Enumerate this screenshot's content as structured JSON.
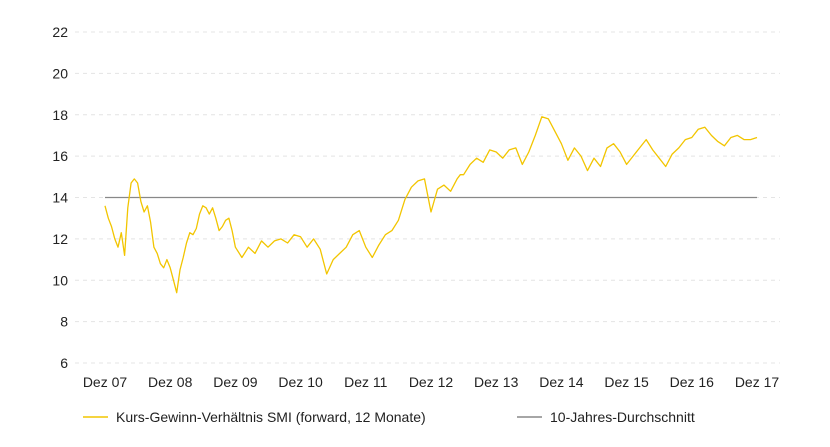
{
  "chart_data": {
    "type": "line",
    "title": "",
    "xlabel": "",
    "ylabel": "",
    "ylim": [
      6,
      22
    ],
    "yticks": [
      6,
      8,
      10,
      12,
      14,
      16,
      18,
      20,
      22
    ],
    "x_categories": [
      "Dez 07",
      "Dez 08",
      "Dez 09",
      "Dez 10",
      "Dez 11",
      "Dez 12",
      "Dez 13",
      "Dez 14",
      "Dez 15",
      "Dez 16",
      "Dez 17"
    ],
    "grid": {
      "horizontal": true,
      "vertical": false,
      "style": "dashed"
    },
    "legend_position": "bottom",
    "series": [
      {
        "name": "Kurs-Gewinn-Verhältnis SMI (forward, 12 Monate)",
        "color": "#F2C500",
        "x": [
          0,
          0.05,
          0.1,
          0.15,
          0.2,
          0.25,
          0.3,
          0.35,
          0.4,
          0.45,
          0.5,
          0.55,
          0.6,
          0.65,
          0.7,
          0.75,
          0.8,
          0.85,
          0.9,
          0.95,
          1.0,
          1.05,
          1.1,
          1.15,
          1.2,
          1.25,
          1.3,
          1.35,
          1.4,
          1.45,
          1.5,
          1.55,
          1.6,
          1.65,
          1.7,
          1.75,
          1.8,
          1.85,
          1.9,
          1.95,
          2.0,
          2.1,
          2.2,
          2.3,
          2.4,
          2.5,
          2.6,
          2.7,
          2.8,
          2.9,
          3.0,
          3.1,
          3.2,
          3.3,
          3.4,
          3.5,
          3.6,
          3.7,
          3.8,
          3.9,
          4.0,
          4.1,
          4.2,
          4.3,
          4.4,
          4.5,
          4.6,
          4.7,
          4.8,
          4.9,
          5.0,
          5.1,
          5.2,
          5.3,
          5.4,
          5.45,
          5.5,
          5.6,
          5.7,
          5.8,
          5.9,
          6.0,
          6.1,
          6.2,
          6.3,
          6.4,
          6.5,
          6.6,
          6.7,
          6.8,
          6.9,
          7.0,
          7.1,
          7.2,
          7.3,
          7.4,
          7.5,
          7.6,
          7.7,
          7.8,
          7.9,
          8.0,
          8.1,
          8.2,
          8.3,
          8.4,
          8.5,
          8.6,
          8.7,
          8.8,
          8.9,
          9.0,
          9.1,
          9.2,
          9.3,
          9.4,
          9.5,
          9.6,
          9.7,
          9.8,
          9.9,
          10.0
        ],
        "y": [
          13.6,
          13.0,
          12.6,
          12.0,
          11.6,
          12.3,
          11.2,
          13.5,
          14.7,
          14.9,
          14.7,
          13.8,
          13.3,
          13.6,
          12.8,
          11.6,
          11.3,
          10.8,
          10.6,
          11.0,
          10.6,
          10.0,
          9.4,
          10.5,
          11.1,
          11.8,
          12.3,
          12.2,
          12.5,
          13.2,
          13.6,
          13.5,
          13.2,
          13.5,
          13.0,
          12.4,
          12.6,
          12.9,
          13.0,
          12.4,
          11.6,
          11.1,
          11.6,
          11.3,
          11.9,
          11.6,
          11.9,
          12.0,
          11.8,
          12.2,
          12.1,
          11.6,
          12.0,
          11.5,
          10.3,
          11.0,
          11.3,
          11.6,
          12.2,
          12.4,
          11.6,
          11.1,
          11.7,
          12.2,
          12.4,
          12.9,
          13.9,
          14.5,
          14.8,
          14.9,
          13.3,
          14.4,
          14.6,
          14.3,
          14.9,
          15.1,
          15.1,
          15.6,
          15.9,
          15.7,
          16.3,
          16.2,
          15.9,
          16.3,
          16.4,
          15.6,
          16.2,
          17.0,
          17.9,
          17.8,
          17.2,
          16.6,
          15.8,
          16.4,
          16.0,
          15.3,
          15.9,
          15.5,
          16.4,
          16.6,
          16.2,
          15.6,
          16.0,
          16.4,
          16.8,
          16.3,
          15.9,
          15.5,
          16.1,
          16.4,
          16.8,
          16.9,
          17.3,
          17.4,
          17.0,
          16.7,
          16.5,
          16.9,
          17.0,
          16.8,
          16.8,
          16.9
        ]
      },
      {
        "name": "10-Jahres-Durchschnitt",
        "color": "#888888",
        "x": [
          0,
          10
        ],
        "y": [
          14,
          14
        ]
      }
    ]
  }
}
